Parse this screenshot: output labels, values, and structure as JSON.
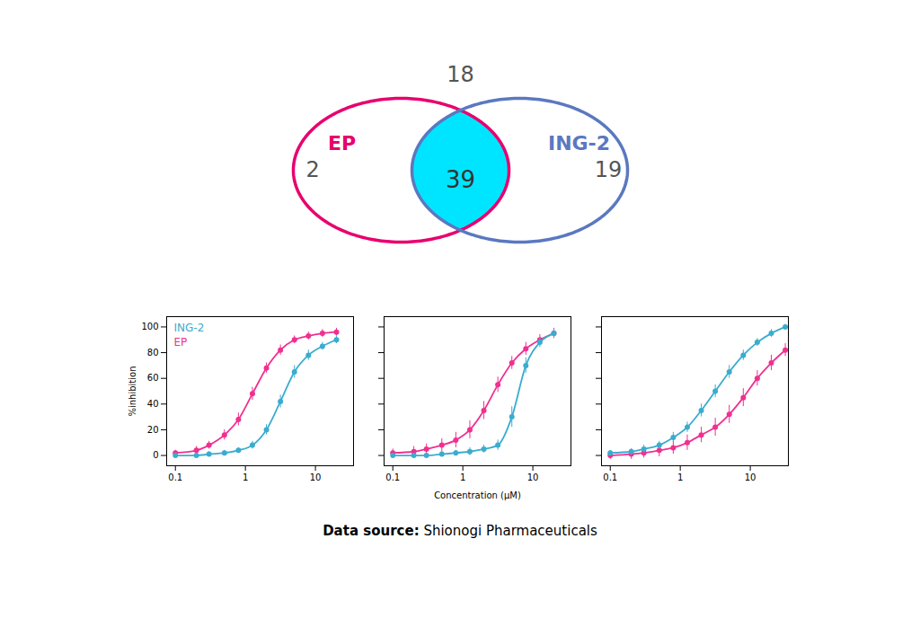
{
  "chart_data": [
    {
      "type": "venn",
      "series": [
        {
          "name": "EP",
          "color": "#E8006E"
        },
        {
          "name": "ING-2",
          "color": "#5B78C0"
        }
      ],
      "values": [
        2,
        39,
        19,
        18
      ],
      "color": "#00E5FF"
    },
    {
      "type": "line",
      "marker": "o",
      "log": "x",
      "x": [
        0.1,
        0.19952623149688797,
        0.3019951720402016,
        0.5011872336272722,
        0.7943282347242815,
        1.2589254117941673,
        1.9952623149688795,
        3.1622776601683795,
        5.011872336272722,
        7.943282347242813,
        12.589254117941675,
        19.952623149688797
      ],
      "xlim": [
        0.075,
        35
      ],
      "xticks": [
        0.1,
        1,
        10
      ],
      "ylim": [
        -8,
        108
      ],
      "yticks": [
        0,
        20,
        40,
        60,
        80,
        100
      ],
      "ylabel": "%inhibition",
      "legend": "upper left",
      "series": [
        {
          "name": "EP",
          "color": "#F03090",
          "values": [
            2,
            4,
            8,
            16,
            28,
            48,
            68,
            82,
            90,
            93,
            95,
            96
          ],
          "errors": [
            2,
            3,
            3,
            4,
            5,
            5,
            4,
            4,
            3,
            3,
            3,
            3
          ]
        },
        {
          "name": "ING-2",
          "color": "#3AACCF",
          "values": [
            0,
            0,
            1,
            2,
            4,
            8,
            20,
            42,
            65,
            78,
            85,
            90
          ],
          "errors": [
            1,
            1,
            2,
            2,
            2,
            3,
            4,
            5,
            5,
            4,
            3,
            3
          ]
        }
      ]
    },
    {
      "type": "line",
      "marker": "o",
      "log": "x",
      "tick_labels": "x",
      "x": [
        0.1,
        0.19952623149688797,
        0.3019951720402016,
        0.5011872336272722,
        0.7943282347242815,
        1.2589254117941673,
        1.9952623149688795,
        3.1622776601683795,
        5.011872336272722,
        7.943282347242813,
        12.589254117941675,
        19.952623149688797
      ],
      "xlim": [
        0.075,
        35
      ],
      "xticks": [
        0.1,
        1,
        10
      ],
      "ylim": [
        -8,
        108
      ],
      "yticks": [
        0,
        20,
        40,
        60,
        80,
        100
      ],
      "xlabel": "Concentration (μM)",
      "series": [
        {
          "color": "#F03090",
          "values": [
            2,
            3,
            5,
            8,
            12,
            20,
            35,
            55,
            72,
            83,
            90,
            95
          ],
          "errors": [
            3,
            4,
            4,
            5,
            6,
            7,
            7,
            6,
            5,
            5,
            4,
            4
          ]
        },
        {
          "color": "#3AACCF",
          "values": [
            0,
            0,
            0,
            1,
            2,
            3,
            5,
            8,
            30,
            70,
            88,
            95
          ],
          "errors": [
            1,
            1,
            1,
            2,
            2,
            3,
            3,
            4,
            8,
            6,
            4,
            3
          ]
        }
      ]
    },
    {
      "type": "line",
      "marker": "o",
      "log": "x",
      "tick_labels": "x",
      "x": [
        0.1,
        0.19952623149688797,
        0.3019951720402016,
        0.5011872336272722,
        0.7943282347242815,
        1.2589254117941673,
        1.9952623149688795,
        3.1622776601683795,
        5.011872336272722,
        7.943282347242813,
        12.589254117941675,
        19.952623149688797,
        31.622776601683793
      ],
      "xlim": [
        0.075,
        35
      ],
      "xticks": [
        0.1,
        1,
        10
      ],
      "ylim": [
        -8,
        108
      ],
      "yticks": [
        0,
        20,
        40,
        60,
        80,
        100
      ],
      "series": [
        {
          "color": "#F03090",
          "values": [
            0,
            1,
            2,
            4,
            6,
            10,
            16,
            22,
            32,
            45,
            60,
            72,
            82
          ],
          "errors": [
            3,
            4,
            4,
            5,
            5,
            6,
            6,
            7,
            7,
            7,
            6,
            6,
            5
          ]
        },
        {
          "color": "#3AACCF",
          "values": [
            2,
            3,
            5,
            8,
            14,
            22,
            35,
            50,
            65,
            78,
            88,
            95,
            100
          ],
          "errors": [
            2,
            2,
            3,
            3,
            4,
            4,
            5,
            5,
            5,
            4,
            3,
            3,
            2
          ]
        }
      ]
    }
  ],
  "caption": [
    {
      "text": "Data source:",
      "bold": true
    },
    {
      "text": " Shionogi Pharmaceuticals",
      "bold": false
    }
  ]
}
